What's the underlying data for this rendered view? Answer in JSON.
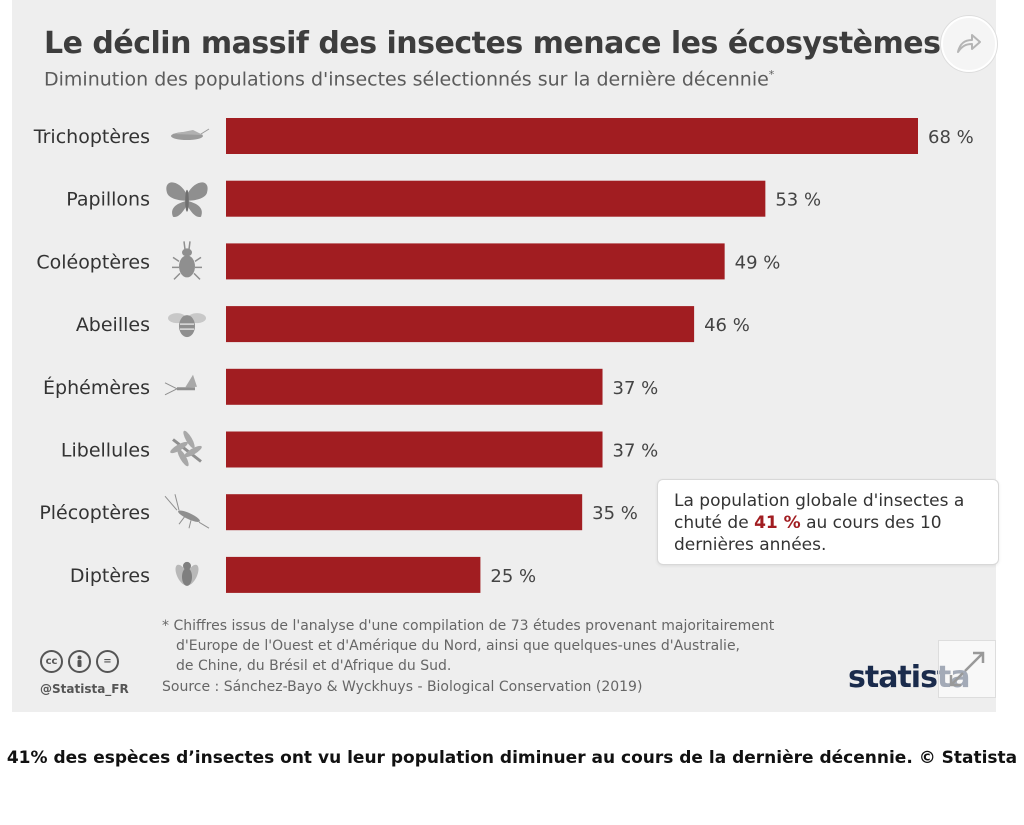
{
  "header": {
    "title": "Le déclin massif des insectes menace les écosystèmes",
    "subtitle": "Diminution des populations d'insectes sélectionnés sur la dernière décennie",
    "subtitle_mark": "*"
  },
  "chart_data": {
    "type": "bar",
    "orientation": "horizontal",
    "title": "Le déclin massif des insectes menace les écosystèmes",
    "subtitle": "Diminution des populations d'insectes sélectionnés sur la dernière décennie*",
    "categories": [
      "Trichoptères",
      "Papillons",
      "Coléoptères",
      "Abeilles",
      "Éphémères",
      "Libellules",
      "Plécoptères",
      "Diptères"
    ],
    "values": [
      68,
      53,
      49,
      46,
      37,
      37,
      35,
      25
    ],
    "value_labels": [
      "68 %",
      "53 %",
      "49 %",
      "46 %",
      "37 %",
      "37 %",
      "35 %",
      "25 %"
    ],
    "icons": [
      "caddisfly-icon",
      "butterfly-icon",
      "beetle-icon",
      "bee-icon",
      "mayfly-icon",
      "dragonfly-icon",
      "stonefly-icon",
      "fly-icon"
    ],
    "xlim": [
      0,
      68
    ],
    "grid": false,
    "legend": "none",
    "bar_color": "#a11d21"
  },
  "callout": {
    "text_before": "La population globale d'insectes a chuté de ",
    "value": "41 %",
    "text_after": " au cours des 10 dernières années."
  },
  "footnote": {
    "line1": "* Chiffres issus de l'analyse d'une compilation de 73 études provenant majoritairement",
    "line2": "d'Europe de l'Ouest et d'Amérique du Nord, ainsi que quelques-unes d'Australie,",
    "line3": "de Chine, du Brésil et d'Afrique du Sud."
  },
  "source": "Source : Sánchez-Bayo & Wyckhuys - Biological Conservation (2019)",
  "license": {
    "icons": [
      "cc",
      "by",
      "="
    ],
    "handle": "@Statista_FR"
  },
  "brand": "statista",
  "caption": "41% des espèces d’insectes ont vu leur population diminuer au cours de la dernière décennie. © Statista",
  "colors": {
    "accent": "#a11d21",
    "panel": "#eeeeee",
    "title": "#3d3d3d"
  }
}
